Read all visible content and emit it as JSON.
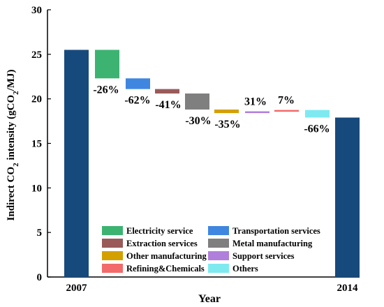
{
  "chart_data": {
    "type": "bar",
    "subtype": "waterfall",
    "title": "",
    "xlabel": "Year",
    "ylabel": "Indirect CO₂ intensity (gCO₂/MJ)",
    "ylim": [
      0,
      30
    ],
    "yticks": [
      0,
      5,
      10,
      15,
      20,
      25,
      30
    ],
    "grid": false,
    "legend_position": "bottom-center",
    "endpoints": [
      {
        "label": "2007",
        "value": 25.5,
        "color": "#174a7c"
      },
      {
        "label": "2014",
        "value": 17.9,
        "color": "#174a7c"
      }
    ],
    "steps": [
      {
        "name": "Electricity service",
        "start": 25.5,
        "end": 22.3,
        "pct_label": "-26%",
        "color": "#3cb371"
      },
      {
        "name": "Transportation services",
        "start": 22.3,
        "end": 21.1,
        "pct_label": "-62%",
        "color": "#3f86e0"
      },
      {
        "name": "Extraction services",
        "start": 21.1,
        "end": 20.6,
        "pct_label": "-41%",
        "color": "#9a5a5a"
      },
      {
        "name": "Metal manufacturing",
        "start": 20.6,
        "end": 18.8,
        "pct_label": "-30%",
        "color": "#7f7f7f"
      },
      {
        "name": "Other manufacturing",
        "start": 18.8,
        "end": 18.4,
        "pct_label": "-35%",
        "color": "#d4a000"
      },
      {
        "name": "Support services",
        "start": 18.4,
        "end": 18.6,
        "pct_label": "31%",
        "color": "#b07fdc"
      },
      {
        "name": "Refining&Chemicals",
        "start": 18.6,
        "end": 18.75,
        "pct_label": "7%",
        "color": "#f26a6a"
      },
      {
        "name": "Others",
        "start": 18.75,
        "end": 17.9,
        "pct_label": "-66%",
        "color": "#7eeaf0"
      }
    ],
    "legend": [
      {
        "name": "Electricity service",
        "color": "#3cb371"
      },
      {
        "name": "Transportation services",
        "color": "#3f86e0"
      },
      {
        "name": "Extraction services",
        "color": "#9a5a5a"
      },
      {
        "name": "Metal manufacturing",
        "color": "#7f7f7f"
      },
      {
        "name": "Other manufacturing",
        "color": "#d4a000"
      },
      {
        "name": "Support services",
        "color": "#b07fdc"
      },
      {
        "name": "Refining&Chemicals",
        "color": "#f26a6a"
      },
      {
        "name": "Others",
        "color": "#7eeaf0"
      }
    ]
  }
}
